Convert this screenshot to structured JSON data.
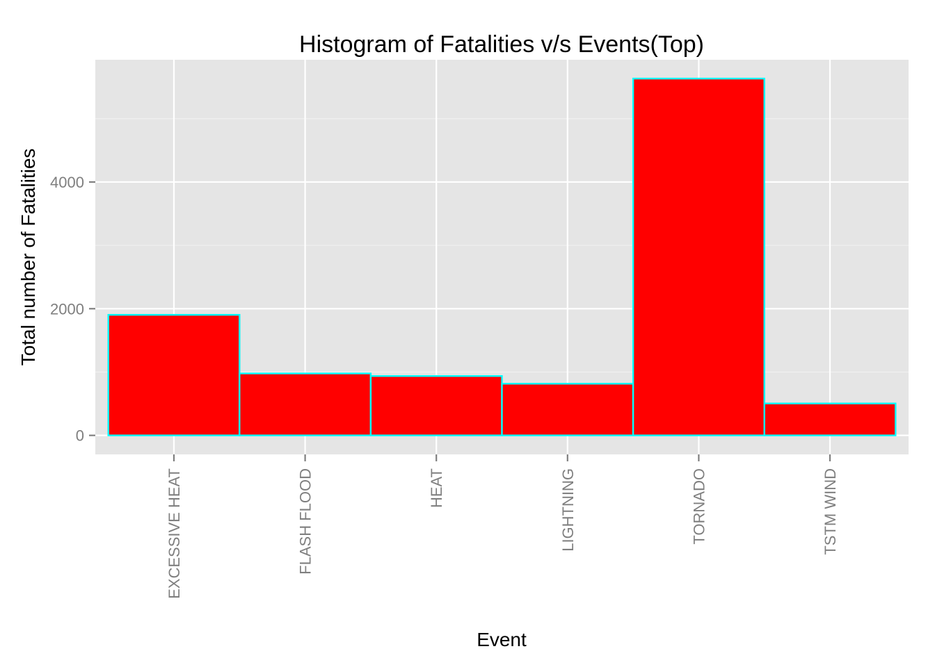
{
  "chart_data": {
    "type": "bar",
    "title": "Histogram of Fatalities v/s Events(Top)",
    "xlabel": "Event",
    "ylabel": "Total number of Fatalities",
    "categories": [
      "EXCESSIVE HEAT",
      "FLASH FLOOD",
      "HEAT",
      "LIGHTNING",
      "TORNADO",
      "TSTM WIND"
    ],
    "values": [
      1903,
      978,
      937,
      816,
      5633,
      504
    ],
    "ylim": [
      -300,
      5930
    ],
    "yticks": [
      0,
      2000,
      4000
    ],
    "ytick_labels": [
      "0",
      "2000",
      "4000"
    ],
    "y_minor_ticks": [
      1000,
      3000,
      5000
    ],
    "grid": true,
    "colors": {
      "panel_background": "#e5e5e5",
      "bar_fill": "#ff0000",
      "bar_outline": "#00ffff",
      "grid": "#ffffff",
      "tick_text": "#7f7f7f"
    }
  }
}
